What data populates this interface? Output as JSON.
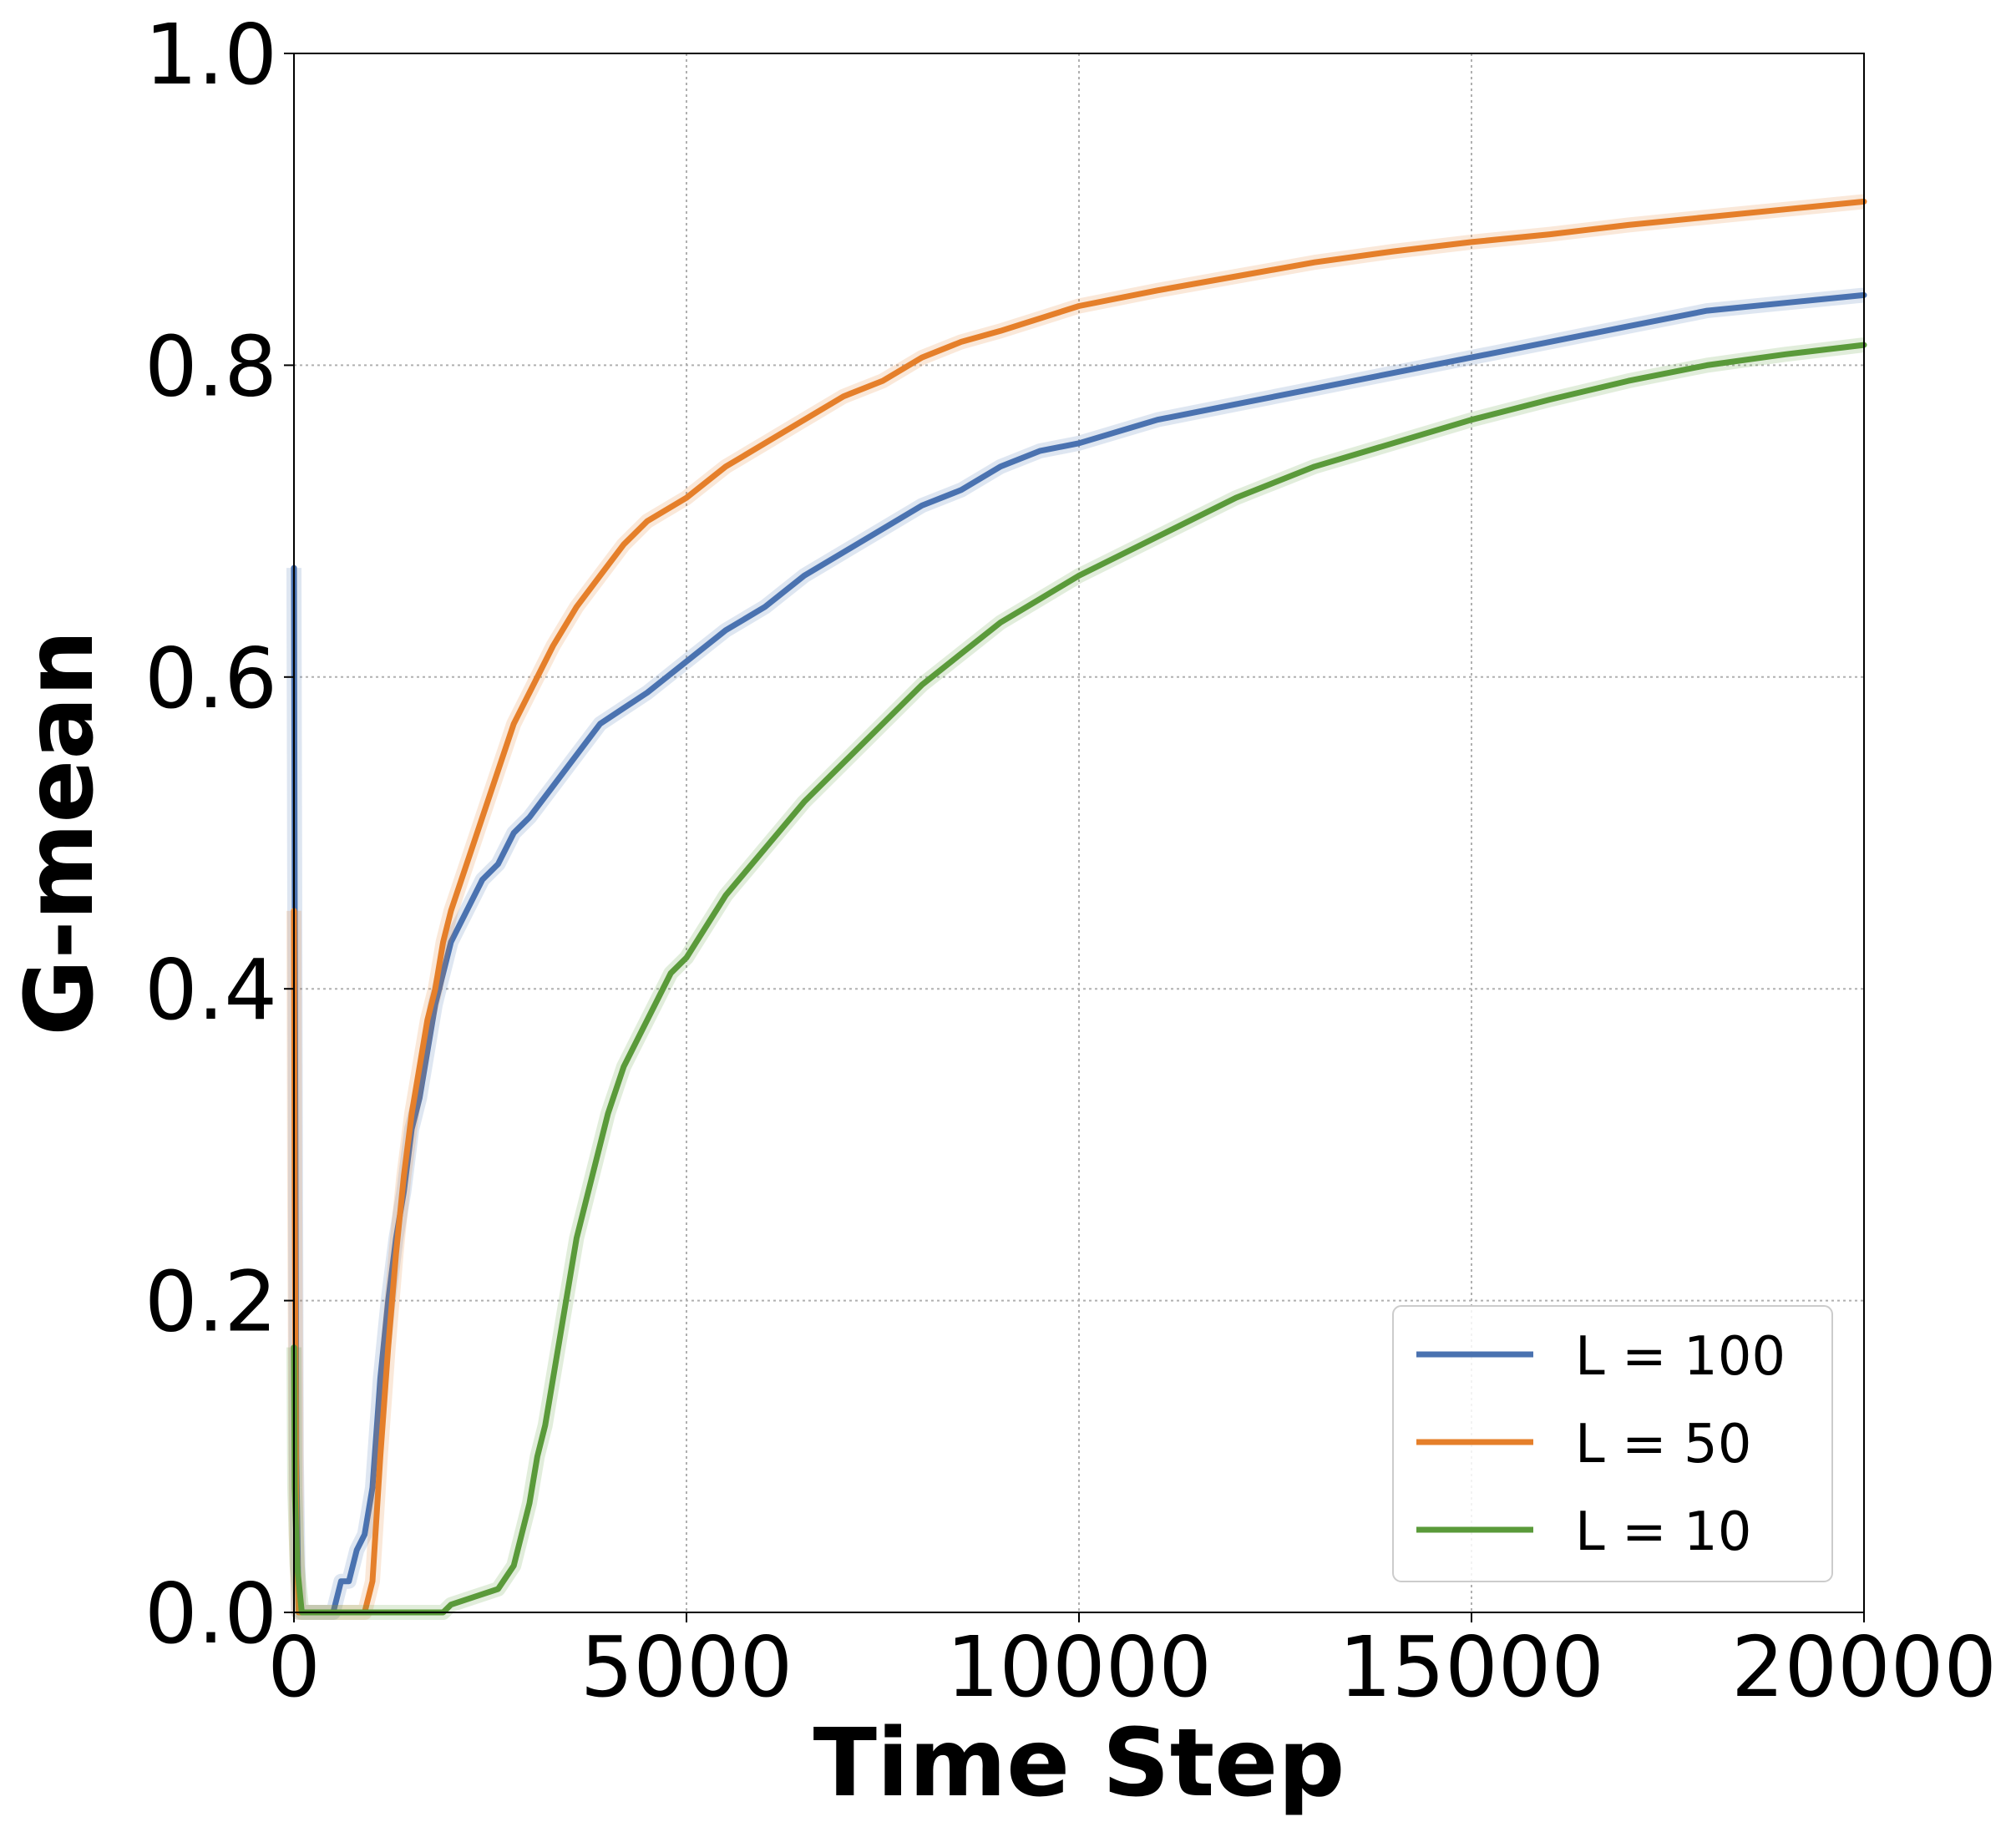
{
  "chart_data": {
    "type": "line",
    "xlabel": "Time Step",
    "ylabel": "G-mean",
    "xlim": [
      0,
      20000
    ],
    "ylim": [
      0,
      1.0
    ],
    "x_ticks": [
      0,
      5000,
      10000,
      15000,
      20000
    ],
    "x_tick_labels": [
      "0",
      "5000",
      "10000",
      "15000",
      "20000"
    ],
    "y_ticks": [
      0.0,
      0.2,
      0.4,
      0.6,
      0.8,
      1.0
    ],
    "y_tick_labels": [
      "0.0",
      "0.2",
      "0.4",
      "0.6",
      "0.8",
      "1.0"
    ],
    "grid": true,
    "legend_position": "bottom-right",
    "series": [
      {
        "name": "L = 100",
        "color": "#4a72b0",
        "points": [
          [
            0,
            0.67
          ],
          [
            10,
            0.46
          ],
          [
            30,
            0.1
          ],
          [
            60,
            0.0
          ],
          [
            500,
            0.0
          ],
          [
            600,
            0.02
          ],
          [
            700,
            0.02
          ],
          [
            800,
            0.04
          ],
          [
            900,
            0.05
          ],
          [
            1000,
            0.08
          ],
          [
            1100,
            0.15
          ],
          [
            1200,
            0.2
          ],
          [
            1300,
            0.24
          ],
          [
            1400,
            0.27
          ],
          [
            1500,
            0.31
          ],
          [
            1600,
            0.33
          ],
          [
            1700,
            0.36
          ],
          [
            1800,
            0.39
          ],
          [
            1900,
            0.41
          ],
          [
            2000,
            0.43
          ],
          [
            2200,
            0.45
          ],
          [
            2400,
            0.47
          ],
          [
            2600,
            0.48
          ],
          [
            2800,
            0.5
          ],
          [
            3000,
            0.51
          ],
          [
            3300,
            0.53
          ],
          [
            3600,
            0.55
          ],
          [
            3900,
            0.57
          ],
          [
            4200,
            0.58
          ],
          [
            4500,
            0.59
          ],
          [
            5000,
            0.61
          ],
          [
            5500,
            0.63
          ],
          [
            6000,
            0.645
          ],
          [
            6500,
            0.665
          ],
          [
            7000,
            0.68
          ],
          [
            7500,
            0.695
          ],
          [
            8000,
            0.71
          ],
          [
            8500,
            0.72
          ],
          [
            9000,
            0.735
          ],
          [
            9500,
            0.745
          ],
          [
            10000,
            0.75
          ],
          [
            11000,
            0.765
          ],
          [
            12000,
            0.775
          ],
          [
            13000,
            0.785
          ],
          [
            14000,
            0.795
          ],
          [
            15000,
            0.805
          ],
          [
            16000,
            0.815
          ],
          [
            17000,
            0.825
          ],
          [
            18000,
            0.835
          ],
          [
            19000,
            0.84
          ],
          [
            20000,
            0.845
          ]
        ]
      },
      {
        "name": "L = 50",
        "color": "#e57f2a",
        "points": [
          [
            0,
            0.45
          ],
          [
            10,
            0.27
          ],
          [
            30,
            0.05
          ],
          [
            60,
            0.0
          ],
          [
            900,
            0.0
          ],
          [
            1000,
            0.02
          ],
          [
            1100,
            0.1
          ],
          [
            1200,
            0.17
          ],
          [
            1300,
            0.23
          ],
          [
            1400,
            0.28
          ],
          [
            1500,
            0.32
          ],
          [
            1600,
            0.35
          ],
          [
            1700,
            0.38
          ],
          [
            1800,
            0.4
          ],
          [
            1900,
            0.43
          ],
          [
            2000,
            0.45
          ],
          [
            2200,
            0.48
          ],
          [
            2400,
            0.51
          ],
          [
            2600,
            0.54
          ],
          [
            2800,
            0.57
          ],
          [
            3000,
            0.59
          ],
          [
            3300,
            0.62
          ],
          [
            3600,
            0.645
          ],
          [
            3900,
            0.665
          ],
          [
            4200,
            0.685
          ],
          [
            4500,
            0.7
          ],
          [
            5000,
            0.715
          ],
          [
            5500,
            0.735
          ],
          [
            6000,
            0.75
          ],
          [
            6500,
            0.765
          ],
          [
            7000,
            0.78
          ],
          [
            7500,
            0.79
          ],
          [
            8000,
            0.805
          ],
          [
            8500,
            0.815
          ],
          [
            9000,
            0.822
          ],
          [
            9500,
            0.83
          ],
          [
            10000,
            0.838
          ],
          [
            11000,
            0.848
          ],
          [
            12000,
            0.857
          ],
          [
            13000,
            0.866
          ],
          [
            14000,
            0.873
          ],
          [
            15000,
            0.879
          ],
          [
            16000,
            0.884
          ],
          [
            17000,
            0.89
          ],
          [
            18000,
            0.895
          ],
          [
            19000,
            0.9
          ],
          [
            20000,
            0.905
          ]
        ]
      },
      {
        "name": "L = 10",
        "color": "#5a9a3a",
        "points": [
          [
            0,
            0.17
          ],
          [
            10,
            0.08
          ],
          [
            40,
            0.03
          ],
          [
            100,
            0.0
          ],
          [
            1900,
            0.0
          ],
          [
            2000,
            0.005
          ],
          [
            2300,
            0.01
          ],
          [
            2600,
            0.015
          ],
          [
            2800,
            0.03
          ],
          [
            2900,
            0.05
          ],
          [
            3000,
            0.07
          ],
          [
            3100,
            0.1
          ],
          [
            3200,
            0.12
          ],
          [
            3300,
            0.15
          ],
          [
            3400,
            0.18
          ],
          [
            3500,
            0.21
          ],
          [
            3600,
            0.24
          ],
          [
            3800,
            0.28
          ],
          [
            4000,
            0.32
          ],
          [
            4200,
            0.35
          ],
          [
            4400,
            0.37
          ],
          [
            4600,
            0.39
          ],
          [
            4800,
            0.41
          ],
          [
            5000,
            0.42
          ],
          [
            5500,
            0.46
          ],
          [
            6000,
            0.49
          ],
          [
            6500,
            0.52
          ],
          [
            7000,
            0.545
          ],
          [
            7500,
            0.57
          ],
          [
            8000,
            0.595
          ],
          [
            8500,
            0.615
          ],
          [
            9000,
            0.635
          ],
          [
            9500,
            0.65
          ],
          [
            10000,
            0.665
          ],
          [
            11000,
            0.69
          ],
          [
            12000,
            0.715
          ],
          [
            13000,
            0.735
          ],
          [
            14000,
            0.75
          ],
          [
            15000,
            0.765
          ],
          [
            16000,
            0.778
          ],
          [
            17000,
            0.79
          ],
          [
            18000,
            0.8
          ],
          [
            19000,
            0.807
          ],
          [
            20000,
            0.813
          ]
        ]
      }
    ]
  }
}
